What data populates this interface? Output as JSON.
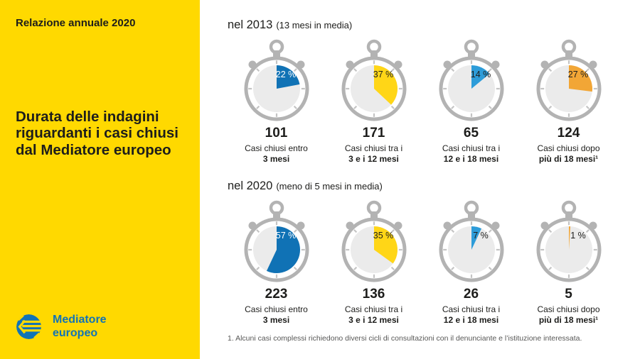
{
  "sidebar": {
    "report_title": "Relazione annuale 2020",
    "heading_lines": [
      "Durata delle indagini",
      "riguardanti i casi chiusi",
      "dal Mediatore europeo"
    ],
    "logo": {
      "line1": "Mediatore",
      "line2": "europeo"
    }
  },
  "footnote": "1. Alcuni casi complessi richiedono diversi cicli di consultazioni con il denunciante e l’istituzione interessata.",
  "colors": {
    "sidebar_yellow": "#FFD900",
    "text_dark": "#1D1D1B",
    "logo_blue": "#1173B6",
    "ring_gray": "#B3B3B3",
    "tick_gray": "#C4C4C4",
    "face_gray": "#EBEBEB",
    "footnote_gray": "#575756",
    "white": "#FFFFFF"
  },
  "chart_data": {
    "type": "pie",
    "title": "Durata delle indagini riguardanti i casi chiusi dal Mediatore europeo",
    "note": "Two rows of stopwatch-style pie charts; each slice starts at 12 o'clock and sweeps clockwise by the given percent of closed cases",
    "legend_position": "none",
    "groups": [
      {
        "label": "nel 2013",
        "sublabel": "(13 mesi in media)",
        "items": [
          {
            "percent": 22,
            "percent_label": "22 %",
            "count": "101",
            "label_line1": "Casi chiusi entro",
            "label_line2": "3 mesi",
            "slice_color": "#1072B5",
            "percent_text_color": "#FFFFFF"
          },
          {
            "percent": 37,
            "percent_label": "37 %",
            "count": "171",
            "label_line1": "Casi chiusi tra i",
            "label_line2": "3 e i 12 mesi",
            "slice_color": "#FFD617",
            "percent_text_color": "#1D1D1B"
          },
          {
            "percent": 14,
            "percent_label": "14 %",
            "count": "65",
            "label_line1": "Casi chiusi tra i",
            "label_line2": "12 e i 18 mesi",
            "slice_color": "#2D9CD9",
            "percent_text_color": "#1D1D1B"
          },
          {
            "percent": 27,
            "percent_label": "27 %",
            "count": "124",
            "label_line1": "Casi chiusi dopo",
            "label_line2": "più di 18 mesi¹",
            "slice_color": "#F2A636",
            "percent_text_color": "#1D1D1B"
          }
        ]
      },
      {
        "label": "nel 2020",
        "sublabel": "(meno di 5 mesi in media)",
        "items": [
          {
            "percent": 57,
            "percent_label": "57 %",
            "count": "223",
            "label_line1": "Casi chiusi entro",
            "label_line2": "3 mesi",
            "slice_color": "#1072B5",
            "percent_text_color": "#FFFFFF"
          },
          {
            "percent": 35,
            "percent_label": "35 %",
            "count": "136",
            "label_line1": "Casi chiusi tra i",
            "label_line2": "3 e i 12 mesi",
            "slice_color": "#FFD617",
            "percent_text_color": "#1D1D1B"
          },
          {
            "percent": 7,
            "percent_label": "7 %",
            "count": "26",
            "label_line1": "Casi chiusi tra i",
            "label_line2": "12 e i 18 mesi",
            "slice_color": "#2D9CD9",
            "percent_text_color": "#1D1D1B"
          },
          {
            "percent": 1,
            "percent_label": "1 %",
            "count": "5",
            "label_line1": "Casi chiusi dopo",
            "label_line2": "più di 18 mesi¹",
            "slice_color": "#F2A636",
            "percent_text_color": "#1D1D1B"
          }
        ]
      }
    ]
  }
}
